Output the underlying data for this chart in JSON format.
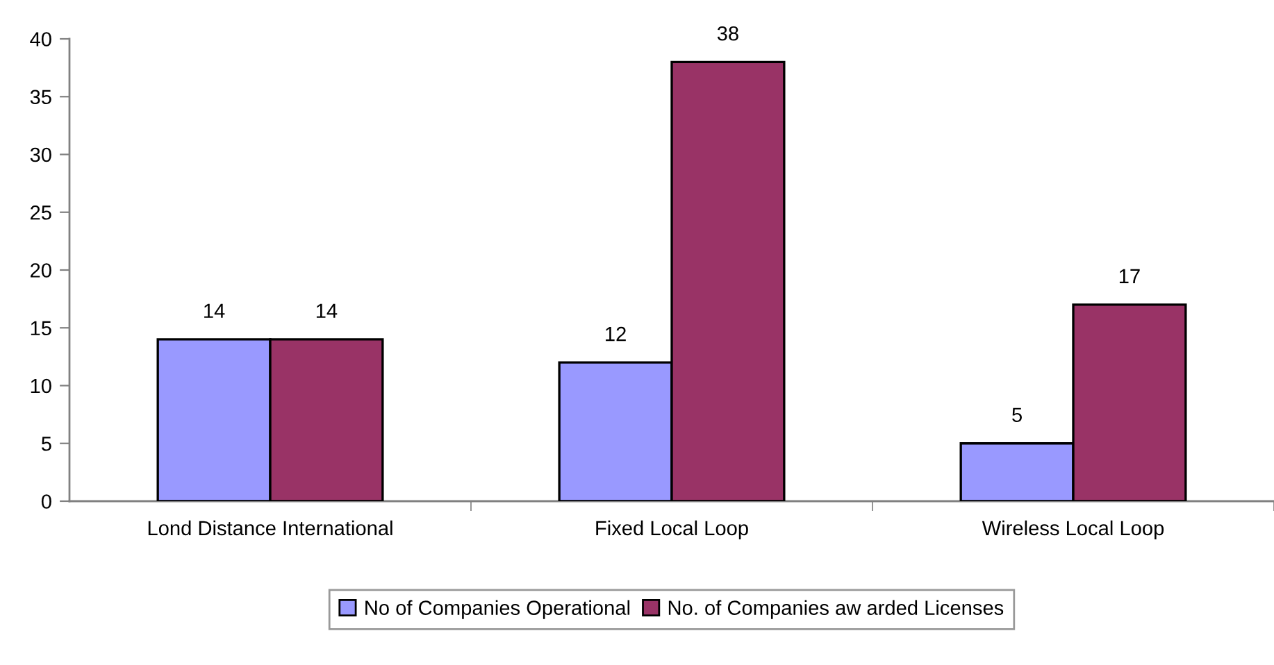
{
  "chart_data": {
    "type": "bar",
    "categories": [
      "Lond Distance International",
      "Fixed Local Loop",
      "Wireless Local Loop"
    ],
    "series": [
      {
        "name": "No of Companies Operational",
        "color": "#9999ff",
        "values": [
          14,
          12,
          5
        ]
      },
      {
        "name": "No. of Companies aw arded Licenses",
        "color": "#993366",
        "values": [
          14,
          38,
          17
        ]
      }
    ],
    "ylim": [
      0,
      40
    ],
    "yticks": [
      0,
      5,
      10,
      15,
      20,
      25,
      30,
      35,
      40
    ],
    "data_labels": true,
    "legend": "bottom"
  }
}
